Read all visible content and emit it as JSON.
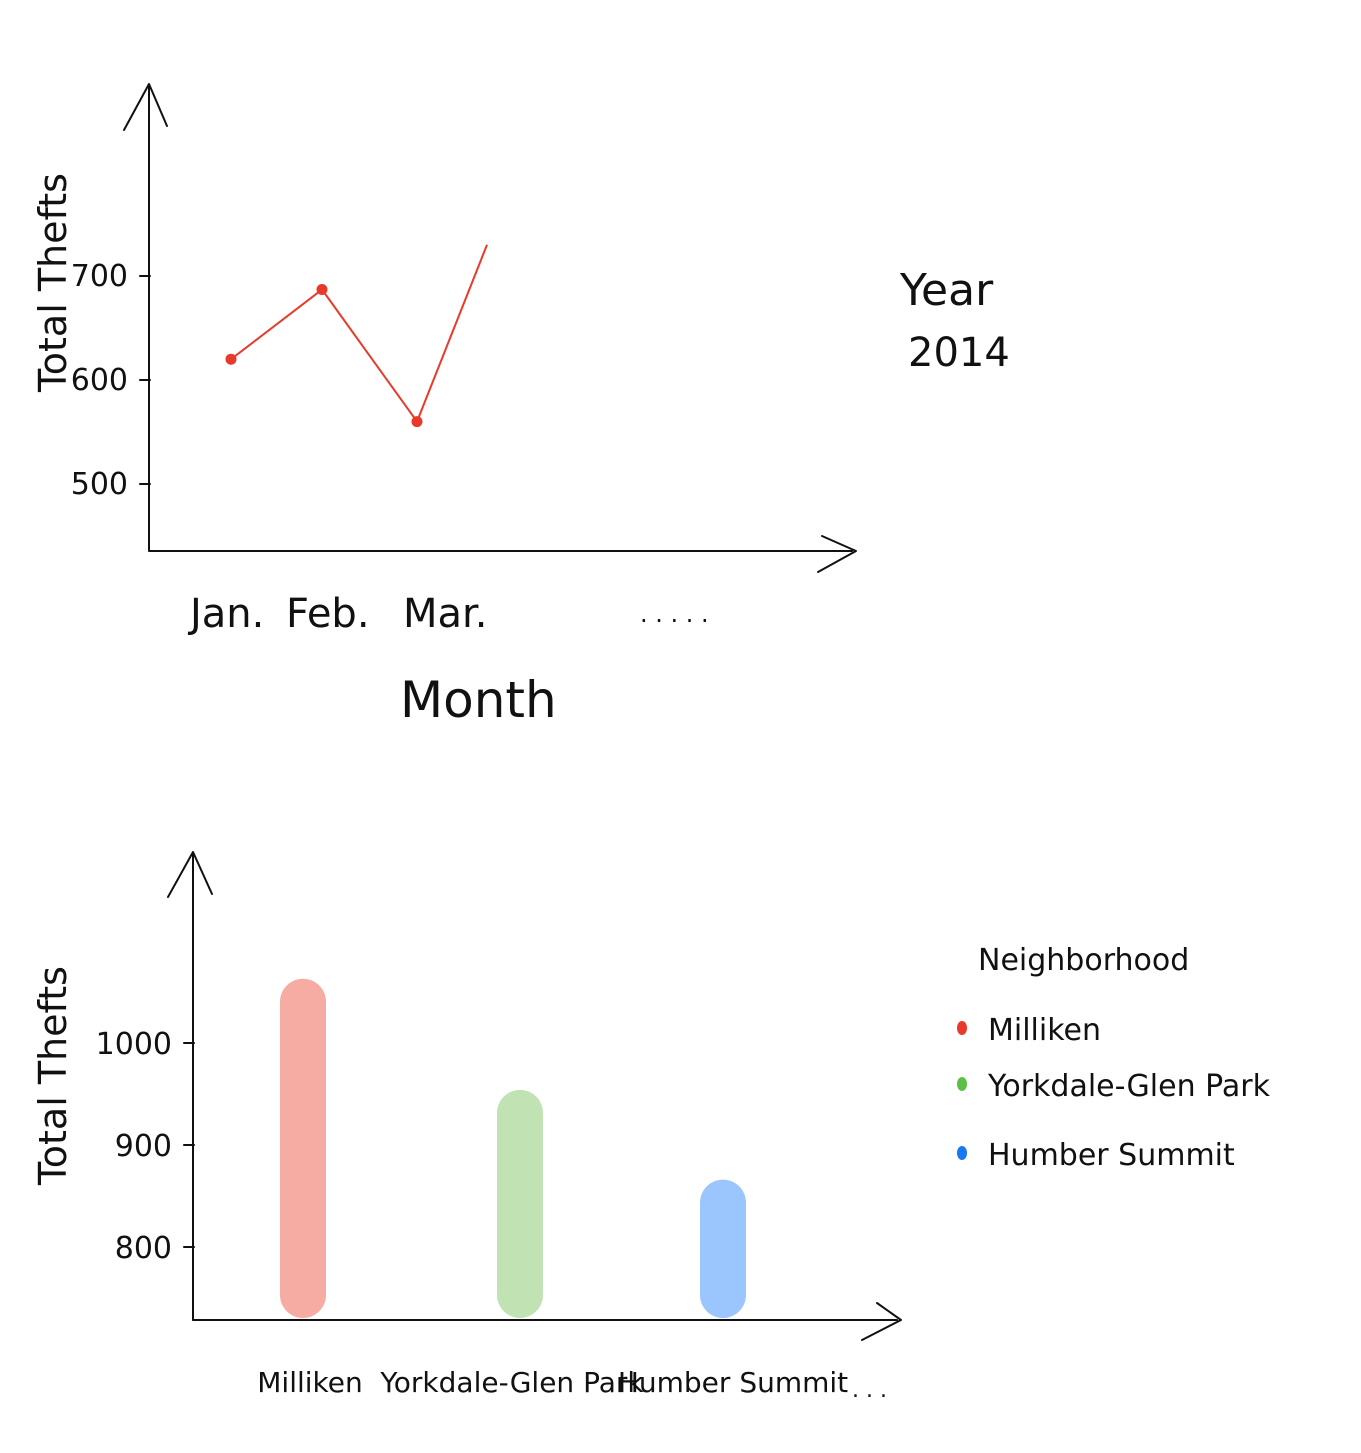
{
  "chart_data": [
    {
      "type": "line",
      "xlabel": "Month",
      "ylabel": "Total Thefts",
      "annotation": [
        "Year",
        "2014"
      ],
      "categories": [
        "Jan.",
        "Feb.",
        "Mar."
      ],
      "x_ellipsis": ". . . . .",
      "yticks": [
        500,
        600,
        700
      ],
      "series": [
        {
          "color": "#e8392a",
          "values": [
            620,
            687,
            560
          ]
        }
      ],
      "trailing_segment_end": 730
    },
    {
      "type": "bar",
      "ylabel": "Total Thefts",
      "categories": [
        "Milliken",
        "Yorkdale-Glen Park",
        "Humber Summit"
      ],
      "x_ellipsis": ". . .",
      "values": [
        1063,
        954,
        866
      ],
      "colors": [
        "#f6aba3",
        "#c1e3b4",
        "#9ac6fd"
      ],
      "yticks": [
        800,
        900,
        1000
      ],
      "legend": {
        "title": "Neighborhood",
        "items": [
          {
            "label": "Milliken",
            "color": "#e8392a"
          },
          {
            "label": "Yorkdale-Glen Park",
            "color": "#5cbf46"
          },
          {
            "label": "Humber Summit",
            "color": "#1878f2"
          }
        ]
      }
    }
  ]
}
